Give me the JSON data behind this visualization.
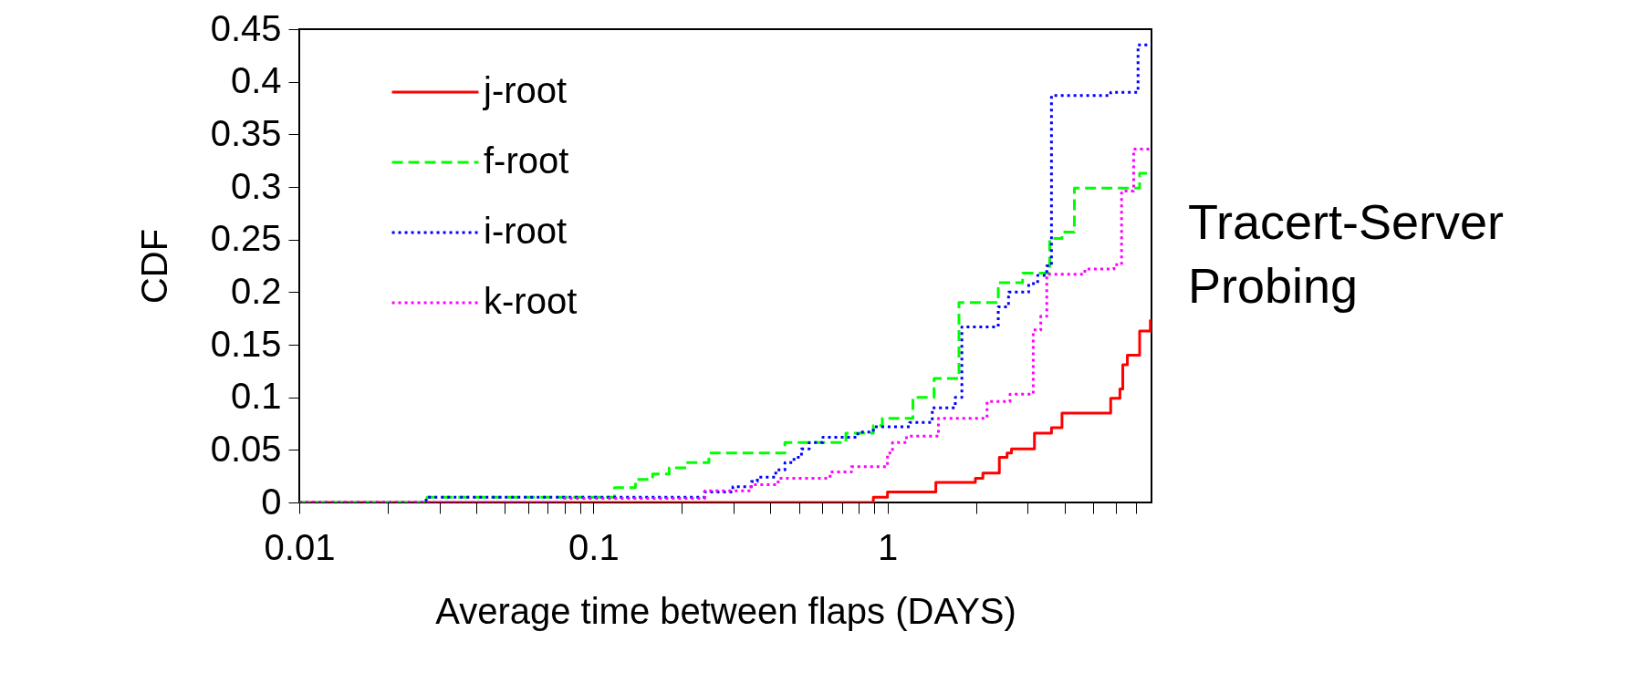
{
  "chart_data": {
    "type": "step",
    "xlabel": "Average time between flaps (DAYS)",
    "ylabel": "CDF",
    "annotations": [
      "Tracert-Server Probing"
    ],
    "log": "x",
    "xlim": [
      0.01,
      7.9
    ],
    "ylim": [
      0,
      0.45
    ],
    "xticks": [
      0.01,
      {
        "value": 0.02,
        "label": null
      },
      {
        "value": 0.03,
        "label": null
      },
      {
        "value": 0.04,
        "label": null
      },
      {
        "value": 0.05,
        "label": null
      },
      {
        "value": 0.06,
        "label": null
      },
      {
        "value": 0.07,
        "label": null
      },
      {
        "value": 0.08,
        "label": null
      },
      {
        "value": 0.09,
        "label": null
      },
      0.1,
      {
        "value": 0.2,
        "label": null
      },
      {
        "value": 0.3,
        "label": null
      },
      {
        "value": 0.4,
        "label": null
      },
      {
        "value": 0.5,
        "label": null
      },
      {
        "value": 0.6,
        "label": null
      },
      {
        "value": 0.7,
        "label": null
      },
      {
        "value": 0.8,
        "label": null
      },
      {
        "value": 0.9,
        "label": null
      },
      1,
      {
        "value": 2,
        "label": null
      },
      {
        "value": 3,
        "label": null
      },
      {
        "value": 4,
        "label": null
      },
      {
        "value": 5,
        "label": null
      },
      {
        "value": 6,
        "label": null
      },
      {
        "value": 7,
        "label": null
      }
    ],
    "yticks": [
      0,
      0.05,
      0.1,
      0.15,
      0.2,
      0.25,
      0.3,
      0.35,
      0.4,
      0.45
    ],
    "grid": false,
    "legend": "top left",
    "marker": "none",
    "series": [
      {
        "name": "j-root",
        "color": "#ff0000",
        "line_style": "solid",
        "x": [
          0.01,
          0.895,
          1.0,
          1.46,
          1.99,
          2.11,
          2.4,
          2.55,
          2.64,
          3.16,
          3.61,
          3.92,
          5.74,
          6.17,
          6.31,
          6.54,
          7.2,
          7.83,
          7.9
        ],
        "values": [
          0,
          0.005,
          0.01,
          0.019,
          0.023,
          0.028,
          0.043,
          0.047,
          0.051,
          0.066,
          0.071,
          0.085,
          0.099,
          0.108,
          0.131,
          0.14,
          0.163,
          0.173,
          0.173
        ]
      },
      {
        "name": "f-root",
        "color": "#00ff00",
        "line_style": "dashed",
        "x": [
          0.01,
          0.0272,
          0.118,
          0.139,
          0.159,
          0.181,
          0.209,
          0.247,
          0.448,
          0.722,
          0.895,
          0.96,
          1.22,
          1.44,
          1.75,
          2.38,
          2.88,
          3.56,
          3.92,
          4.32,
          7.2,
          7.9
        ],
        "values": [
          0,
          0.005,
          0.014,
          0.022,
          0.027,
          0.033,
          0.038,
          0.047,
          0.057,
          0.066,
          0.073,
          0.08,
          0.1,
          0.118,
          0.19,
          0.209,
          0.218,
          0.251,
          0.257,
          0.299,
          0.313,
          0.313
        ]
      },
      {
        "name": "i-root",
        "color": "#0000ff",
        "line_style": "dotted",
        "x": [
          0.01,
          0.027,
          0.239,
          0.298,
          0.344,
          0.361,
          0.417,
          0.448,
          0.481,
          0.51,
          0.542,
          0.603,
          0.793,
          0.895,
          1.19,
          1.42,
          1.7,
          1.79,
          2.38,
          2.58,
          3.02,
          3.24,
          3.48,
          3.61,
          5.74,
          7.11,
          7.9
        ],
        "values": [
          0,
          0.005,
          0.01,
          0.015,
          0.02,
          0.024,
          0.031,
          0.038,
          0.043,
          0.051,
          0.057,
          0.062,
          0.067,
          0.072,
          0.076,
          0.09,
          0.1,
          0.167,
          0.186,
          0.2,
          0.208,
          0.216,
          0.225,
          0.387,
          0.39,
          0.435,
          0.435
        ]
      },
      {
        "name": "k-root",
        "color": "#ff00ff",
        "line_style": "dotted",
        "x": [
          0.01,
          0.0787,
          0.239,
          0.344,
          0.425,
          0.638,
          0.754,
          1.0,
          1.04,
          1.16,
          1.49,
          2.18,
          2.61,
          3.13,
          3.32,
          3.48,
          4.69,
          5.89,
          6.25,
          6.87,
          7.9
        ],
        "values": [
          0,
          0.004,
          0.011,
          0.017,
          0.023,
          0.029,
          0.034,
          0.047,
          0.057,
          0.063,
          0.08,
          0.096,
          0.103,
          0.164,
          0.177,
          0.217,
          0.222,
          0.226,
          0.296,
          0.336,
          0.336
        ]
      }
    ]
  }
}
